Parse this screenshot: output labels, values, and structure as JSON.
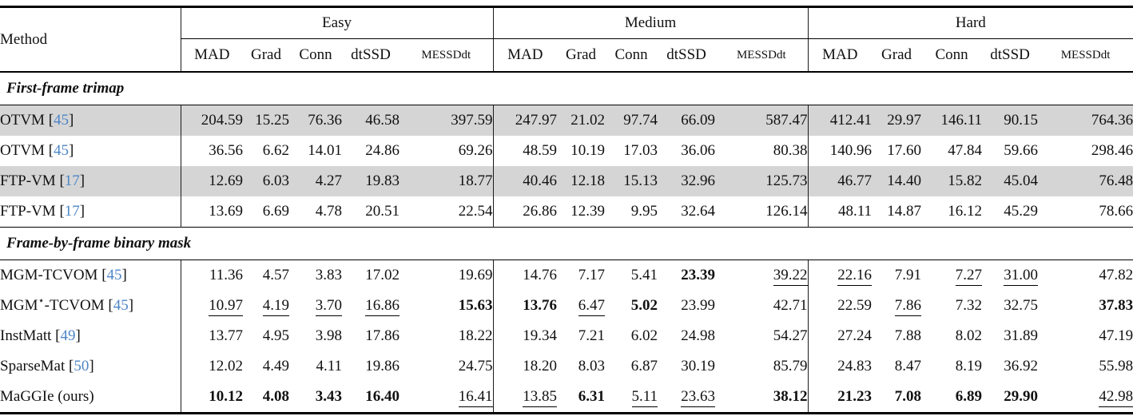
{
  "table": {
    "method_header": "Method",
    "groups": [
      {
        "label": "Easy",
        "metrics": [
          "MAD",
          "Grad",
          "Conn",
          "dtSSD",
          "MESSDdt"
        ]
      },
      {
        "label": "Medium",
        "metrics": [
          "MAD",
          "Grad",
          "Conn",
          "dtSSD",
          "MESSDdt"
        ]
      },
      {
        "label": "Hard",
        "metrics": [
          "MAD",
          "Grad",
          "Conn",
          "dtSSD",
          "MESSDdt"
        ]
      }
    ],
    "sections": [
      {
        "title": "First-frame trimap",
        "rows": [
          {
            "method": "OTVM",
            "cite": "45",
            "shaded": true,
            "values": [
              "204.59",
              "15.25",
              "76.36",
              "46.58",
              "397.59",
              "247.97",
              "21.02",
              "97.74",
              "66.09",
              "587.47",
              "412.41",
              "29.97",
              "146.11",
              "90.15",
              "764.36"
            ],
            "styles": "nnnnnnnnnnnnnnn"
          },
          {
            "method": "OTVM",
            "cite": "45",
            "shaded": false,
            "values": [
              "36.56",
              "6.62",
              "14.01",
              "24.86",
              "69.26",
              "48.59",
              "10.19",
              "17.03",
              "36.06",
              "80.38",
              "140.96",
              "17.60",
              "47.84",
              "59.66",
              "298.46"
            ],
            "styles": "nnnnnnnnnnnnnnn"
          },
          {
            "method": "FTP-VM",
            "cite": "17",
            "shaded": true,
            "values": [
              "12.69",
              "6.03",
              "4.27",
              "19.83",
              "18.77",
              "40.46",
              "12.18",
              "15.13",
              "32.96",
              "125.73",
              "46.77",
              "14.40",
              "15.82",
              "45.04",
              "76.48"
            ],
            "styles": "nnnnnnnnnnnnnnn"
          },
          {
            "method": "FTP-VM",
            "cite": "17",
            "shaded": false,
            "values": [
              "13.69",
              "6.69",
              "4.78",
              "20.51",
              "22.54",
              "26.86",
              "12.39",
              "9.95",
              "32.64",
              "126.14",
              "48.11",
              "14.87",
              "16.12",
              "45.29",
              "78.66"
            ],
            "styles": "nnnnnnnnnnnnnnn"
          }
        ]
      },
      {
        "title": "Frame-by-frame binary mask",
        "rows": [
          {
            "method": "MGM-TCVOM",
            "cite": "45",
            "shaded": false,
            "values": [
              "11.36",
              "4.57",
              "3.83",
              "17.02",
              "19.69",
              "14.76",
              "7.17",
              "5.41",
              "23.39",
              "39.22",
              "22.16",
              "7.91",
              "7.27",
              "31.00",
              "47.82"
            ],
            "styles": "nnnnnnnnbuunuun"
          },
          {
            "method": "MGM⋆-TCVOM",
            "cite": "45",
            "shaded": false,
            "values": [
              "10.97",
              "4.19",
              "3.70",
              "16.86",
              "15.63",
              "13.76",
              "6.47",
              "5.02",
              "23.99",
              "42.71",
              "22.59",
              "7.86",
              "7.32",
              "32.75",
              "37.83"
            ],
            "styles": "uuuubbubnnnunnb"
          },
          {
            "method": "InstMatt",
            "cite": "49",
            "shaded": false,
            "values": [
              "13.77",
              "4.95",
              "3.98",
              "17.86",
              "18.22",
              "19.34",
              "7.21",
              "6.02",
              "24.98",
              "54.27",
              "27.24",
              "7.88",
              "8.02",
              "31.89",
              "47.19"
            ],
            "styles": "nnnnnnnnnnnnnnn"
          },
          {
            "method": "SparseMat",
            "cite": "50",
            "shaded": false,
            "values": [
              "12.02",
              "4.49",
              "4.11",
              "19.86",
              "24.75",
              "18.20",
              "8.03",
              "6.87",
              "30.19",
              "85.79",
              "24.83",
              "8.47",
              "8.19",
              "36.92",
              "55.98"
            ],
            "styles": "nnnnnnnnnnnnnnn"
          },
          {
            "method": "MaGGIe (ours)",
            "cite": null,
            "shaded": false,
            "values": [
              "10.12",
              "4.08",
              "3.43",
              "16.40",
              "16.41",
              "13.85",
              "6.31",
              "5.11",
              "23.63",
              "38.12",
              "21.23",
              "7.08",
              "6.89",
              "29.90",
              "42.98"
            ],
            "styles": "bbbbuubuubbbbbu"
          }
        ]
      }
    ]
  },
  "colors": {
    "citation_blue": "#4d86c6",
    "shaded_row_gray": "#d5d5d5"
  }
}
